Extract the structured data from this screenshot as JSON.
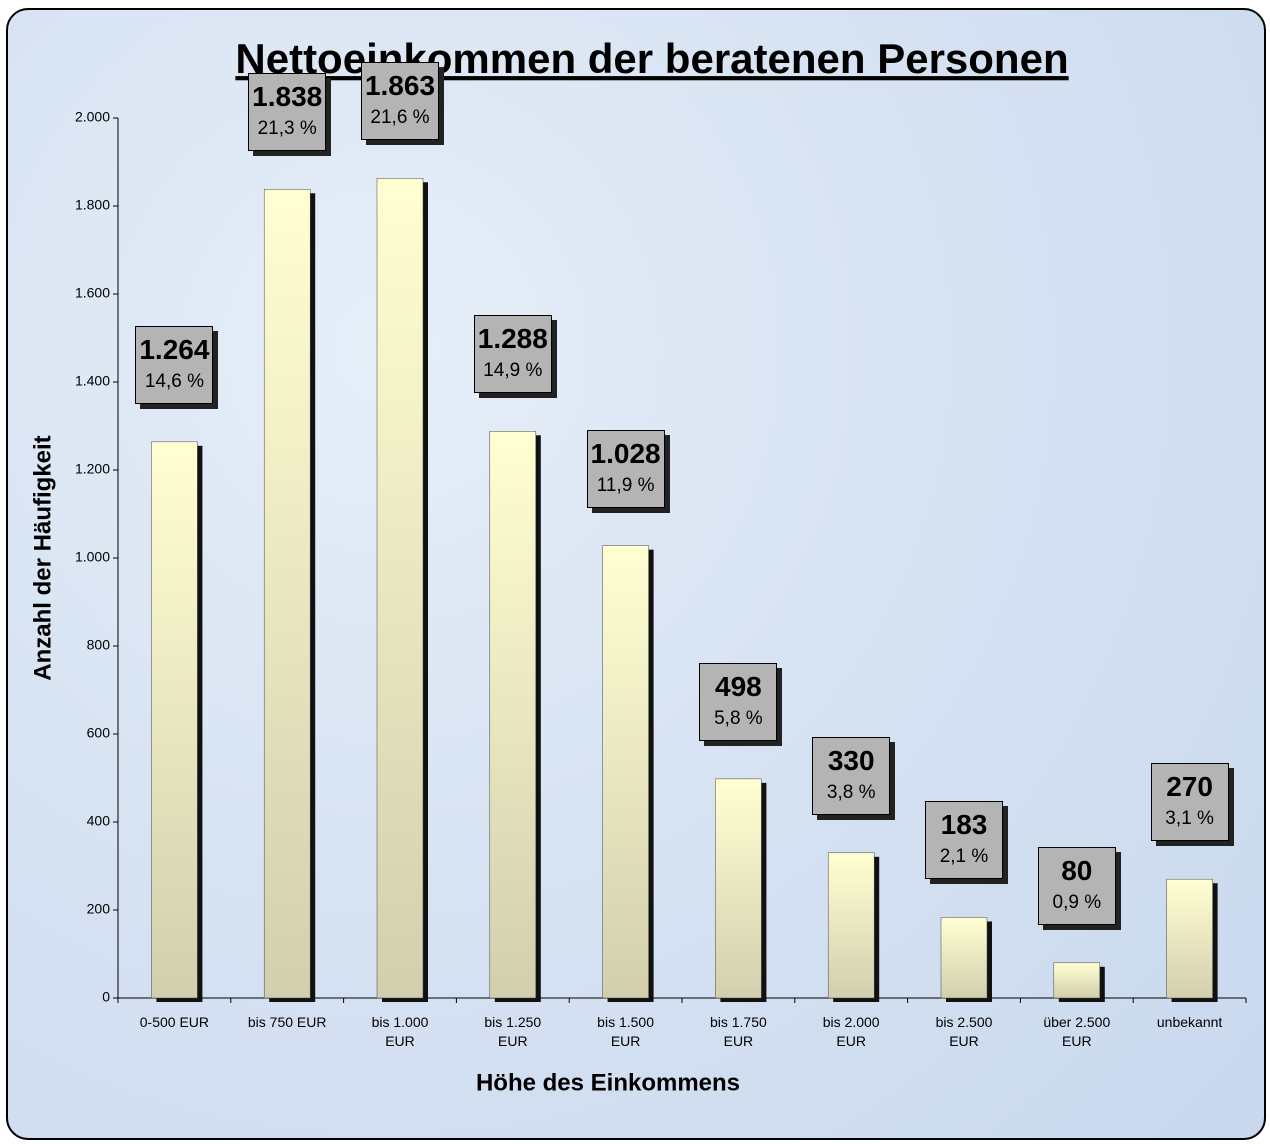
{
  "chart_data": {
    "type": "bar",
    "title": "Nettoeinkommen der beratenen Personen",
    "x_label": "Höhe des Einkommens",
    "y_label": "Anzahl der Häufigkeit",
    "categories": [
      "0-500 EUR",
      "bis 750 EUR",
      "bis 1.000 EUR",
      "bis 1.250 EUR",
      "bis 1.500 EUR",
      "bis 1.750 EUR",
      "bis 2.000 EUR",
      "bis 2.500 EUR",
      "über 2.500 EUR",
      "unbekannt"
    ],
    "values": [
      1264,
      1838,
      1863,
      1288,
      1028,
      498,
      330,
      183,
      80,
      270
    ],
    "value_labels": [
      "1.264",
      "1.838",
      "1.863",
      "1.288",
      "1.028",
      "498",
      "330",
      "183",
      "80",
      "270"
    ],
    "share_labels": [
      "14,6 %",
      "21,3 %",
      "21,6 %",
      "14,9 %",
      "11,9 %",
      "5,8 %",
      "3,8 %",
      "2,1 %",
      "0,9 %",
      "3,1 %"
    ],
    "color": "#ffffd2",
    "ylim": [
      0,
      2000
    ],
    "yticks": [
      0,
      200,
      400,
      600,
      800,
      {
        "value": 1000,
        "label": "1.000"
      },
      {
        "value": 1200,
        "label": "1.200"
      },
      {
        "value": 1400,
        "label": "1.400"
      },
      {
        "value": 1600,
        "label": "1.600"
      },
      {
        "value": 1800,
        "label": "1.800"
      },
      {
        "value": 2000,
        "label": "2.000"
      }
    ],
    "grid": false
  }
}
